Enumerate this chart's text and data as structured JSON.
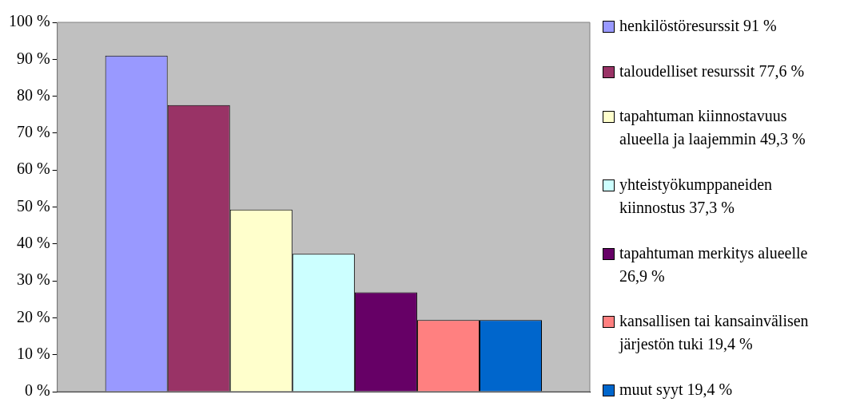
{
  "chart_data": {
    "type": "bar",
    "categories": [
      null
    ],
    "series": [
      {
        "name": "henkilöstöresurssit 91 %",
        "color": "#9999ff",
        "values": [
          91
        ]
      },
      {
        "name": "taloudelliset resurssit 77,6 %",
        "color": "#993366",
        "values": [
          77.6
        ]
      },
      {
        "name": "tapahtuman kiinnostavuus alueella ja laajemmin 49,3 %",
        "color": "#ffffcc",
        "values": [
          49.3
        ]
      },
      {
        "name": "yhteistyökumppaneiden kiinnostus 37,3 %",
        "color": "#ccffff",
        "values": [
          37.3
        ]
      },
      {
        "name": "tapahtuman merkitys alueelle 26,9 %",
        "color": "#660066",
        "values": [
          26.9
        ]
      },
      {
        "name": "kansallisen tai kansainvälisen järjestön tuki 19,4 %",
        "color": "#ff8080",
        "values": [
          19.4
        ]
      },
      {
        "name": "muut syyt 19,4 %",
        "color": "#0066cc",
        "values": [
          19.4
        ]
      }
    ],
    "ylim": [
      0,
      100
    ],
    "yticks": [
      {
        "value": 0,
        "label": "0 %"
      },
      {
        "value": 10,
        "label": "10 %"
      },
      {
        "value": 20,
        "label": "20 %"
      },
      {
        "value": 30,
        "label": "30 %"
      },
      {
        "value": 40,
        "label": "40 %"
      },
      {
        "value": 50,
        "label": "50 %"
      },
      {
        "value": 60,
        "label": "60 %"
      },
      {
        "value": 70,
        "label": "70 %"
      },
      {
        "value": 80,
        "label": "80 %"
      },
      {
        "value": 90,
        "label": "90 %"
      },
      {
        "value": 100,
        "label": "100 %"
      }
    ],
    "legend": "right"
  }
}
